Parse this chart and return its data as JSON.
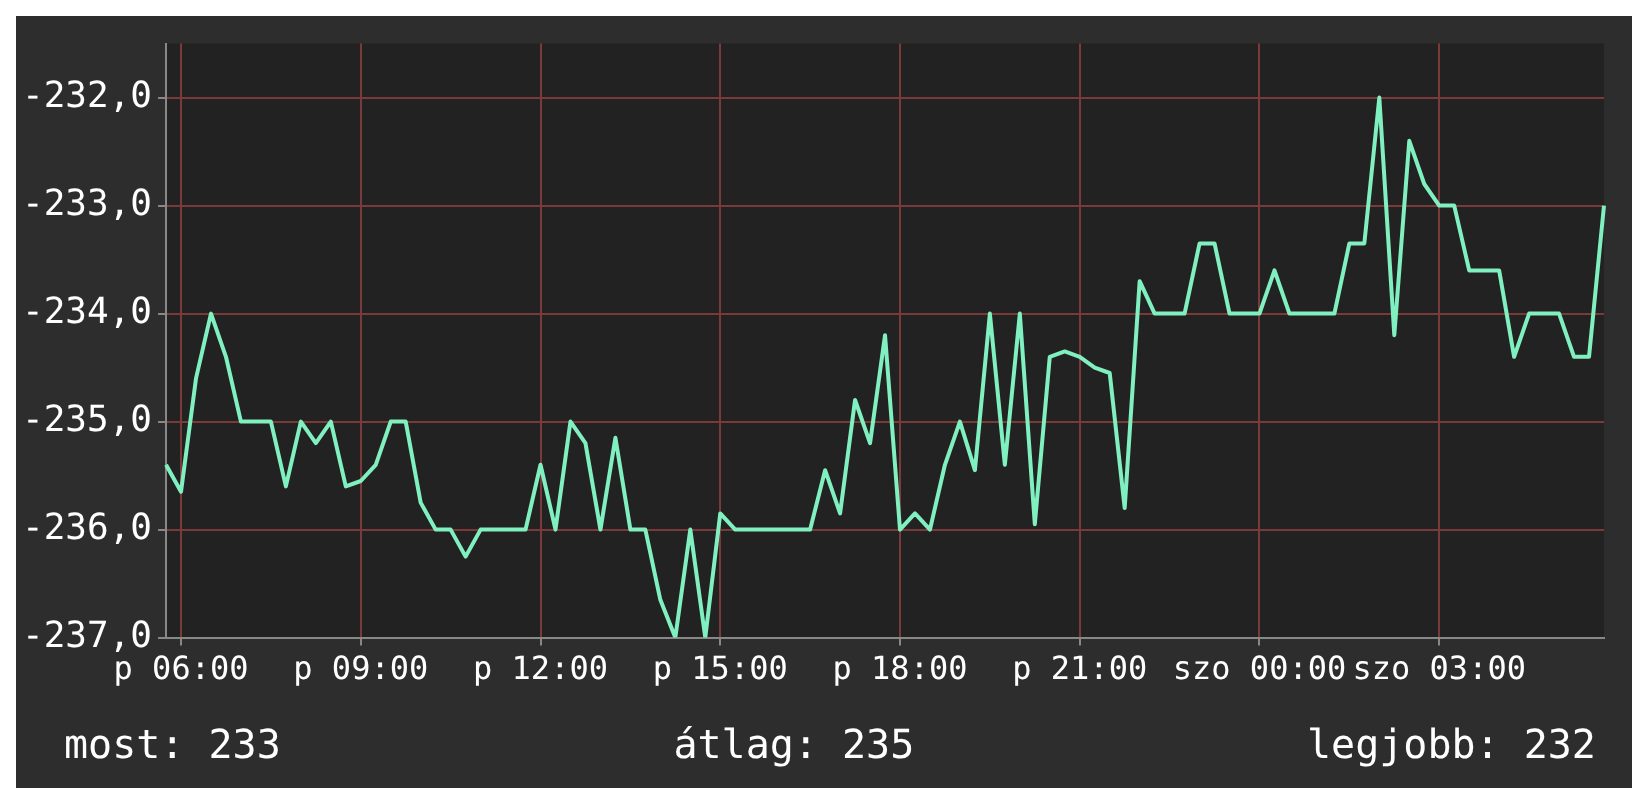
{
  "chart_data": {
    "type": "line",
    "marker": "none",
    "grid": true,
    "legend": false,
    "categories": [
      null,
      "p 06:00",
      null,
      null,
      null,
      null,
      null,
      null,
      null,
      null,
      null,
      null,
      null,
      "p 09:00",
      null,
      null,
      null,
      null,
      null,
      null,
      null,
      null,
      null,
      null,
      null,
      "p 12:00",
      null,
      null,
      null,
      null,
      null,
      null,
      null,
      null,
      null,
      null,
      null,
      "p 15:00",
      null,
      null,
      null,
      null,
      null,
      null,
      null,
      null,
      null,
      null,
      null,
      "p 18:00",
      null,
      null,
      null,
      null,
      null,
      null,
      null,
      null,
      null,
      null,
      null,
      "p 21:00",
      null,
      null,
      null,
      null,
      null,
      null,
      null,
      null,
      null,
      null,
      null,
      "szo 00:00",
      null,
      null,
      null,
      null,
      null,
      null,
      null,
      null,
      null,
      null,
      null,
      "szo 03:00",
      null,
      null,
      null,
      null,
      null,
      null,
      null,
      null,
      null,
      null,
      null
    ],
    "series": [
      {
        "color": "#80f0c0",
        "values": [
          -235.4,
          -235.65,
          -234.6,
          -234.0,
          -234.4,
          -235.0,
          -235.0,
          -235.0,
          -235.6,
          -235.0,
          -235.2,
          -235.0,
          -235.6,
          -235.55,
          -235.4,
          -235.0,
          -235.0,
          -235.75,
          -236.0,
          -236.0,
          -236.25,
          -236.0,
          -236.0,
          -236.0,
          -236.0,
          -235.4,
          -236.0,
          -235.0,
          -235.2,
          -236.0,
          -235.15,
          -236.0,
          -236.0,
          -236.65,
          -237.0,
          -236.0,
          -237.0,
          -235.85,
          -236.0,
          -236.0,
          -236.0,
          -236.0,
          -236.0,
          -236.0,
          -235.45,
          -235.85,
          -234.8,
          -235.2,
          -234.2,
          -236.0,
          -235.85,
          -236.0,
          -235.4,
          -235.0,
          -235.45,
          -234.0,
          -235.4,
          -234.0,
          -235.95,
          -234.4,
          -234.35,
          -234.4,
          -234.5,
          -234.55,
          -235.8,
          -233.7,
          -234.0,
          -234.0,
          -234.0,
          -233.35,
          -233.35,
          -234.0,
          -234.0,
          -234.0,
          -233.6,
          -234.0,
          -234.0,
          -234.0,
          -234.0,
          -233.35,
          -233.35,
          -232.0,
          -234.2,
          -232.4,
          -232.8,
          -233.0,
          -233.0,
          -233.6,
          -233.6,
          -233.6,
          -234.4,
          -234.0,
          -234.0,
          -234.0,
          -234.4,
          -234.4,
          -233.0
        ]
      }
    ],
    "ylim": [
      -237,
      -231.5
    ],
    "yticks": [
      {
        "value": -237,
        "label": "-237,0"
      },
      {
        "value": -236,
        "label": "-236,0"
      },
      {
        "value": -235,
        "label": "-235,0"
      },
      {
        "value": -234,
        "label": "-234,0"
      },
      {
        "value": -233,
        "label": "-233,0"
      },
      {
        "value": -232,
        "label": "-232,0"
      }
    ],
    "annotations": [
      "most: 233",
      "átlag: 235",
      "legjobb: 232"
    ]
  }
}
